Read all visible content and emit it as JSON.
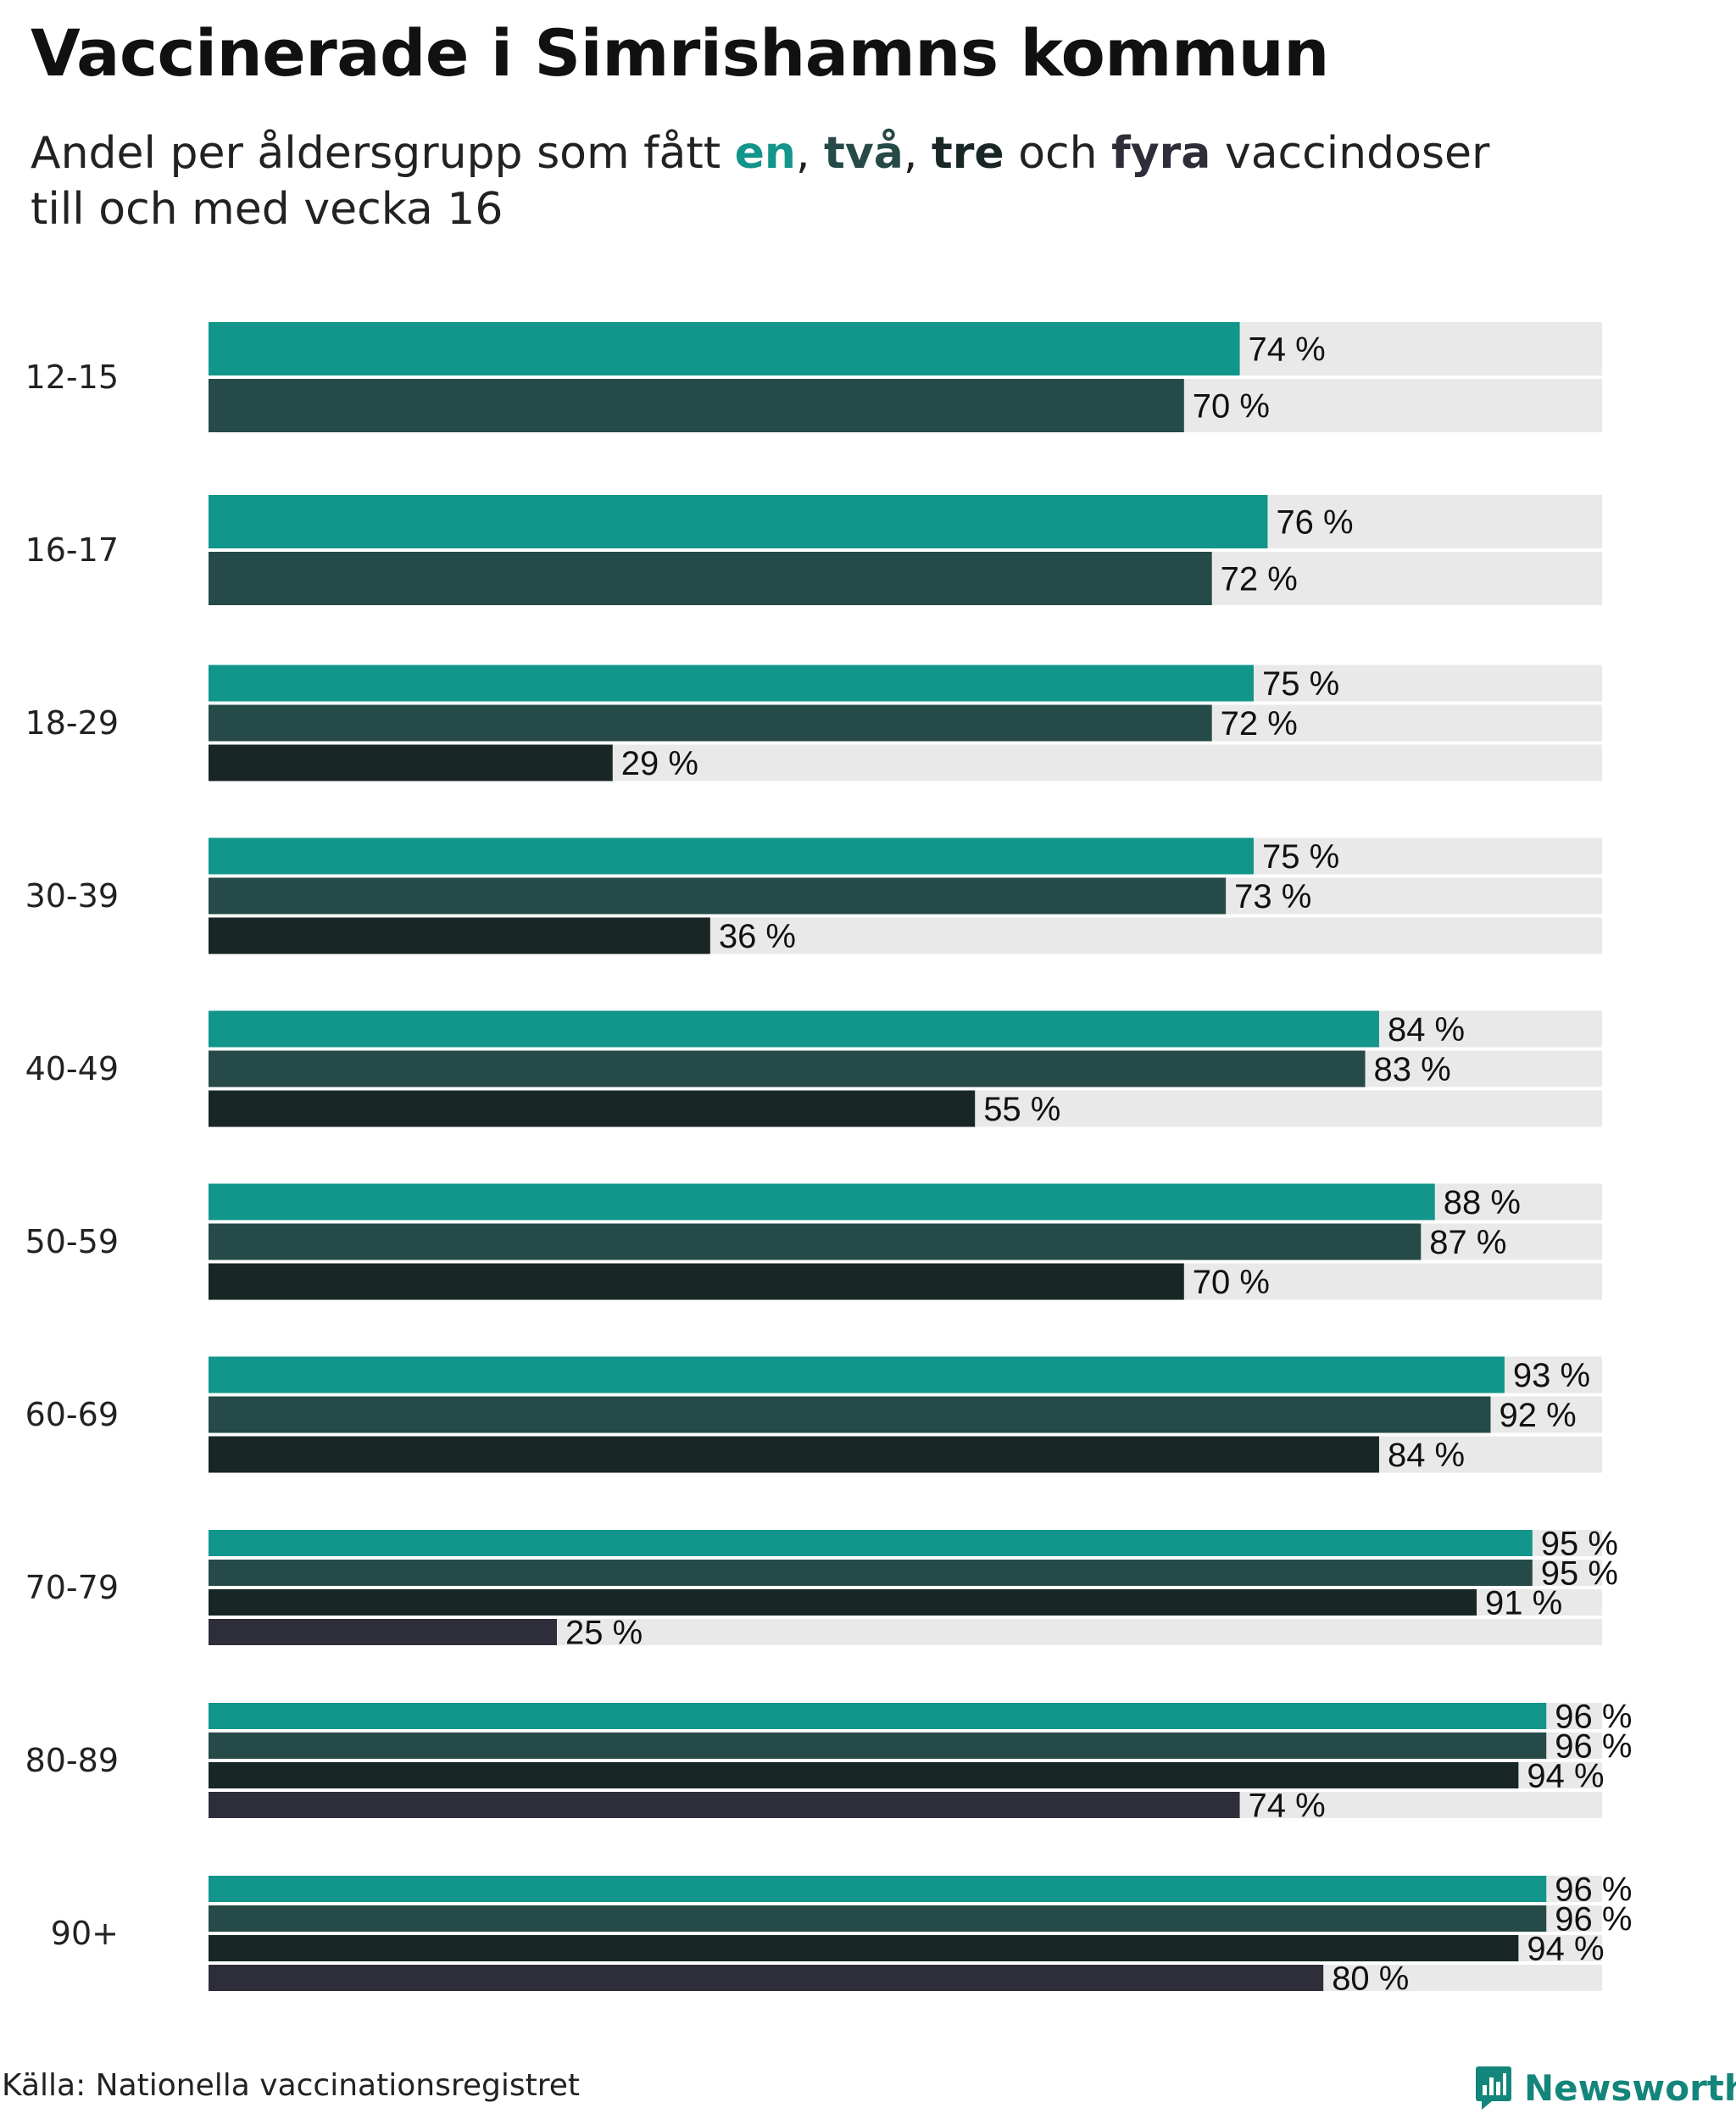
{
  "title": "Vaccinerade i Simrishamns kommun",
  "subtitle": {
    "prefix": "Andel per åldersgrupp som fått ",
    "k1": "en",
    "sep1": ", ",
    "k2": "två",
    "sep2": ", ",
    "k3": "tre",
    "mid": " och ",
    "k4": "fyra",
    "suffix": " vaccindoser",
    "line2": "till och med vecka 16"
  },
  "source": "Källa: Nationella vaccinationsregistret",
  "logo": {
    "name": "Newsworthy",
    "icon": "bar-chart-speech-bubble-icon"
  },
  "colors": {
    "one_dose": "#12958a",
    "two_doses": "#254a47",
    "three_doses": "#182726",
    "four_doses": "#2e2e3a",
    "track": "#e9e9e9",
    "brand": "#14857a"
  },
  "chart_data": {
    "type": "bar",
    "orientation": "horizontal",
    "xlim": [
      0,
      100
    ],
    "value_suffix": " %",
    "categories": [
      "12-15",
      "16-17",
      "18-29",
      "30-39",
      "40-49",
      "50-59",
      "60-69",
      "70-79",
      "80-89",
      "90+"
    ],
    "series": [
      {
        "name": "en",
        "values": [
          74,
          76,
          75,
          75,
          84,
          88,
          93,
          95,
          96,
          96
        ]
      },
      {
        "name": "två",
        "values": [
          70,
          72,
          72,
          73,
          83,
          87,
          92,
          95,
          96,
          96
        ]
      },
      {
        "name": "tre",
        "values": [
          null,
          null,
          29,
          36,
          55,
          70,
          84,
          91,
          94,
          94
        ]
      },
      {
        "name": "fyra",
        "values": [
          null,
          null,
          null,
          null,
          null,
          null,
          null,
          25,
          74,
          80
        ]
      }
    ]
  }
}
